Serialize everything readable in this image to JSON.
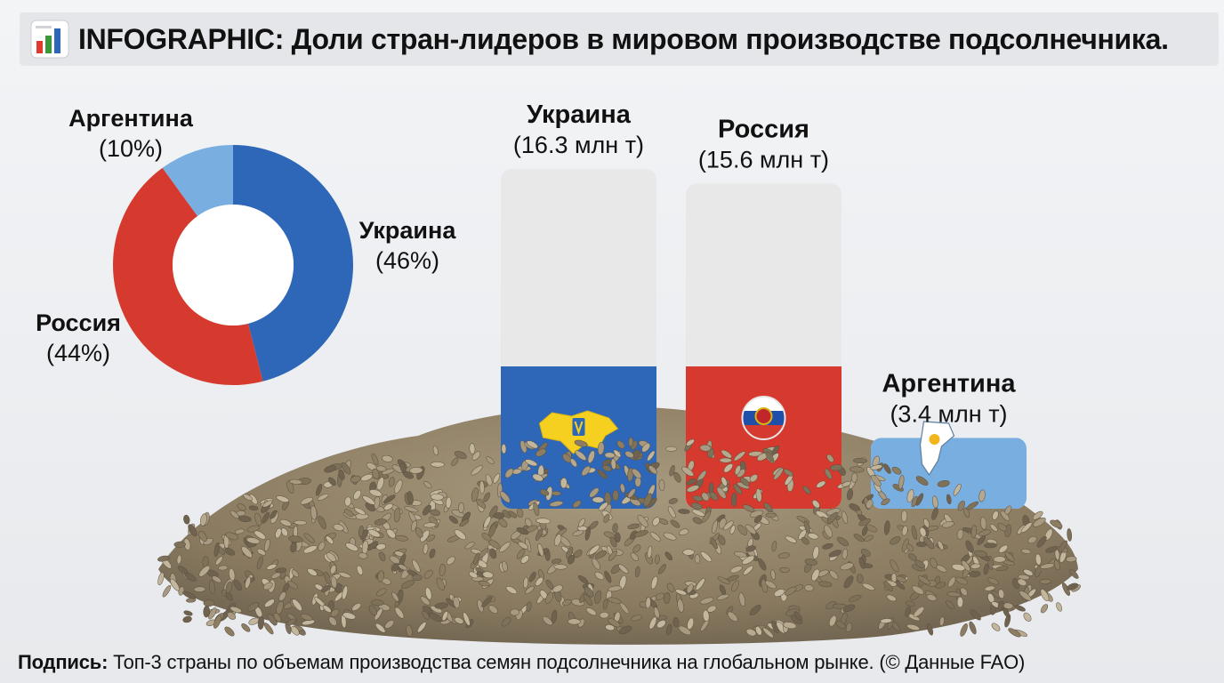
{
  "header": {
    "icon": "bar-chart-icon",
    "title": "INFOGRAPHIC: Доли стран-лидеров в мировом производстве подсолнечника."
  },
  "chart_data": [
    {
      "type": "pie",
      "variant": "donut",
      "slices": [
        {
          "name": "Украина",
          "label": "(46%)",
          "value": 46,
          "color": "#2f67b8"
        },
        {
          "name": "Россия",
          "label": "(44%)",
          "value": 44,
          "color": "#d63a2e"
        },
        {
          "name": "Аргентина",
          "label": "(10%)",
          "value": 10,
          "color": "#79aee0"
        }
      ]
    },
    {
      "type": "bar",
      "categories": [
        "Украина",
        "Россия",
        "Аргентина"
      ],
      "values": [
        16.3,
        15.6,
        3.4
      ],
      "value_labels": [
        "(16.3 млн т)",
        "(15.6 млн т)",
        "(3.4 млн т)"
      ],
      "flags": [
        "ukraine-flag-icon",
        "russia-flag-icon",
        "argentina-flag-icon"
      ],
      "unit": "млн т"
    }
  ],
  "colors": {
    "ukraine_blue": "#2f67b8",
    "ukraine_yellow": "#f5d020",
    "russia_red": "#d63a2e",
    "argentina_blue": "#79aee0",
    "bar_track": "#e8e8e8",
    "seed": "#8e7e62"
  },
  "footer": {
    "label": "Подпись:",
    "text": " Топ-3 страны по объемам производства семян подсолнечника на глобальном рынке. (© Данные FAO)"
  }
}
